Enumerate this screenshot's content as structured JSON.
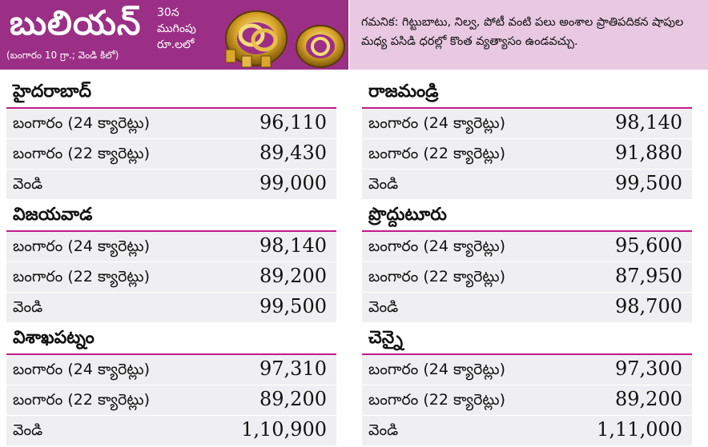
{
  "header": {
    "title": "బులియన్",
    "subtitle": "(బంగారం 10 గ్రా.; వెండి కిలో)",
    "closing_line1": "30న",
    "closing_line2": "ముగింపు",
    "closing_line3": "రూ.లలో",
    "note": "గమనిక: గిట్టుబాటు, నిల్వ, పోటీ వంటి పలు అంశాల ప్రాతిపదికన షాపుల మధ్య పసిడి ధరల్లో కొంత వ్యత్యాసం ఉండవచ్చు."
  },
  "left": [
    {
      "city": "హైదరాబాద్",
      "rows": [
        {
          "label": "బంగారం (24 క్యారెట్లు)",
          "price": "96,110"
        },
        {
          "label": "బంగారం (22 క్యారెట్లు)",
          "price": "89,430"
        },
        {
          "label": "వెండి",
          "price": "99,000"
        }
      ]
    },
    {
      "city": "విజయవాడ",
      "rows": [
        {
          "label": "బంగారం (24 క్యారెట్లు)",
          "price": "98,140"
        },
        {
          "label": "బంగారం (22 క్యారెట్లు)",
          "price": "89,200"
        },
        {
          "label": "వెండి",
          "price": "99,500"
        }
      ]
    },
    {
      "city": "విశాఖపట్నం",
      "rows": [
        {
          "label": "బంగారం (24 క్యారెట్లు)",
          "price": "97,310"
        },
        {
          "label": "బంగారం (22 క్యారెట్లు)",
          "price": "89,200"
        },
        {
          "label": "వెండి",
          "price": "1,10,900"
        }
      ]
    }
  ],
  "right": [
    {
      "city": "రాజమండ్రి",
      "rows": [
        {
          "label": "బంగారం (24 క్యారెట్లు)",
          "price": "98,140"
        },
        {
          "label": "బంగారం (22 క్యారెట్లు)",
          "price": "91,880"
        },
        {
          "label": "వెండి",
          "price": "99,500"
        }
      ]
    },
    {
      "city": "ప్రొద్దుటూరు",
      "rows": [
        {
          "label": "బంగారం (24 క్యారెట్లు)",
          "price": "95,600"
        },
        {
          "label": "బంగారం (22 క్యారెట్లు)",
          "price": "87,950"
        },
        {
          "label": "వెండి",
          "price": "98,700"
        }
      ]
    },
    {
      "city": "చెన్నై",
      "rows": [
        {
          "label": "బంగారం (24 క్యారెట్లు)",
          "price": "97,300"
        },
        {
          "label": "బంగారం (22 క్యారెట్లు)",
          "price": "89,200"
        },
        {
          "label": "వెండి",
          "price": "1,11,000"
        }
      ]
    }
  ]
}
